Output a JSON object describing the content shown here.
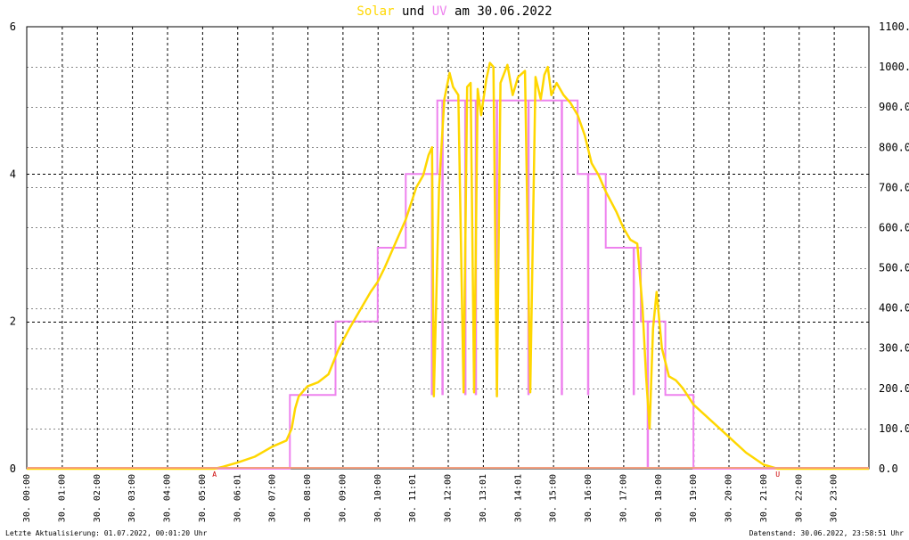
{
  "title": {
    "solar": "Solar",
    "und": "und",
    "uv": "UV",
    "am": "am",
    "date": "30.06.2022"
  },
  "footer": {
    "left": "Letzte Aktualisierung: 01.07.2022, 00:01:20 Uhr",
    "right": "Datenstand: 30.06.2022, 23:58:51 Uhr"
  },
  "colors": {
    "solar": "#ffd700",
    "uv": "#ee82ee",
    "grid": "#000000",
    "marker": "#cc0000"
  },
  "chart_data": {
    "type": "line",
    "title": "Solar und UV am 30.06.2022",
    "xlim": [
      0,
      24
    ],
    "x_unit": "hours",
    "y_left": {
      "lim": [
        0,
        6
      ],
      "ticks": [
        "0",
        "2",
        "4",
        "6"
      ]
    },
    "y_right": {
      "lim": [
        0,
        1100
      ],
      "ticks": [
        "0.0",
        "100.0",
        "200.0",
        "300.0",
        "400.0",
        "500.0",
        "600.0",
        "700.0",
        "800.0",
        "900.0",
        "1000.0",
        "1100.0"
      ]
    },
    "x_tick_labels": [
      "30. 00:00",
      "30. 01:00",
      "30. 02:00",
      "30. 03:00",
      "30. 04:00",
      "30. 05:00",
      "30. 06:01",
      "30. 07:00",
      "30. 08:00",
      "30. 09:00",
      "30. 10:00",
      "30. 11:01",
      "30. 12:00",
      "30. 13:01",
      "30. 14:01",
      "30. 15:00",
      "30. 16:00",
      "30. 17:00",
      "30. 18:00",
      "30. 19:00",
      "30. 20:00",
      "30. 21:00",
      "30. 22:00",
      "30. 23:00"
    ],
    "markers": [
      {
        "label": "A",
        "x": 5.35
      },
      {
        "label": "U",
        "x": 21.4
      }
    ],
    "grid": true,
    "series": [
      {
        "name": "Solar",
        "axis": "right",
        "points": [
          [
            0,
            0
          ],
          [
            5.35,
            0
          ],
          [
            5.6,
            5
          ],
          [
            6,
            15
          ],
          [
            6.5,
            30
          ],
          [
            7,
            55
          ],
          [
            7.4,
            70
          ],
          [
            7.55,
            100
          ],
          [
            7.65,
            150
          ],
          [
            7.75,
            180
          ],
          [
            8,
            205
          ],
          [
            8.3,
            215
          ],
          [
            8.6,
            235
          ],
          [
            8.9,
            300
          ],
          [
            9.2,
            350
          ],
          [
            9.5,
            395
          ],
          [
            9.8,
            440
          ],
          [
            10,
            465
          ],
          [
            10.2,
            500
          ],
          [
            10.5,
            560
          ],
          [
            10.8,
            620
          ],
          [
            11.1,
            700
          ],
          [
            11.3,
            730
          ],
          [
            11.45,
            780
          ],
          [
            11.55,
            800
          ],
          [
            11.6,
            180
          ],
          [
            11.75,
            700
          ],
          [
            11.9,
            920
          ],
          [
            12.05,
            985
          ],
          [
            12.15,
            950
          ],
          [
            12.3,
            930
          ],
          [
            12.45,
            190
          ],
          [
            12.55,
            950
          ],
          [
            12.65,
            960
          ],
          [
            12.75,
            190
          ],
          [
            12.85,
            945
          ],
          [
            12.95,
            880
          ],
          [
            13.1,
            970
          ],
          [
            13.2,
            1010
          ],
          [
            13.3,
            1000
          ],
          [
            13.4,
            180
          ],
          [
            13.5,
            960
          ],
          [
            13.7,
            1005
          ],
          [
            13.85,
            930
          ],
          [
            14,
            975
          ],
          [
            14.2,
            990
          ],
          [
            14.35,
            190
          ],
          [
            14.5,
            975
          ],
          [
            14.65,
            920
          ],
          [
            14.75,
            980
          ],
          [
            14.85,
            1000
          ],
          [
            14.95,
            930
          ],
          [
            15.1,
            960
          ],
          [
            15.3,
            930
          ],
          [
            15.5,
            910
          ],
          [
            15.7,
            880
          ],
          [
            15.9,
            830
          ],
          [
            16.1,
            760
          ],
          [
            16.3,
            730
          ],
          [
            16.5,
            690
          ],
          [
            16.8,
            640
          ],
          [
            17,
            600
          ],
          [
            17.2,
            570
          ],
          [
            17.4,
            560
          ],
          [
            17.55,
            400
          ],
          [
            17.65,
            230
          ],
          [
            17.75,
            100
          ],
          [
            17.85,
            350
          ],
          [
            17.95,
            440
          ],
          [
            18.1,
            300
          ],
          [
            18.3,
            230
          ],
          [
            18.5,
            220
          ],
          [
            18.7,
            200
          ],
          [
            19,
            160
          ],
          [
            19.5,
            120
          ],
          [
            20,
            80
          ],
          [
            20.5,
            40
          ],
          [
            21,
            10
          ],
          [
            21.4,
            0
          ],
          [
            24,
            0
          ]
        ]
      },
      {
        "name": "UV",
        "axis": "left",
        "step": true,
        "points": [
          [
            0,
            0
          ],
          [
            7.5,
            0
          ],
          [
            7.5,
            1
          ],
          [
            8.8,
            1
          ],
          [
            8.8,
            2
          ],
          [
            10,
            2
          ],
          [
            10,
            3
          ],
          [
            10.8,
            3
          ],
          [
            10.8,
            4
          ],
          [
            11.7,
            4
          ],
          [
            11.7,
            5
          ],
          [
            15.7,
            5
          ],
          [
            15.7,
            4
          ],
          [
            16.5,
            4
          ],
          [
            16.5,
            3
          ],
          [
            17.5,
            3
          ],
          [
            17.5,
            2
          ],
          [
            18.2,
            2
          ],
          [
            18.2,
            1
          ],
          [
            19,
            1
          ],
          [
            19,
            0
          ],
          [
            24,
            0
          ]
        ],
        "dips": [
          [
            11.55,
            1
          ],
          [
            11.6,
            4
          ],
          [
            11.85,
            1
          ],
          [
            12.5,
            1
          ],
          [
            12.6,
            5
          ],
          [
            12.8,
            1
          ],
          [
            12.9,
            5
          ],
          [
            13.4,
            1
          ],
          [
            14.3,
            1
          ],
          [
            14.4,
            5
          ],
          [
            15.25,
            1
          ],
          [
            15.35,
            5
          ],
          [
            16.0,
            1
          ],
          [
            17.3,
            1
          ],
          [
            17.7,
            0
          ],
          [
            17.8,
            2
          ]
        ]
      }
    ]
  }
}
